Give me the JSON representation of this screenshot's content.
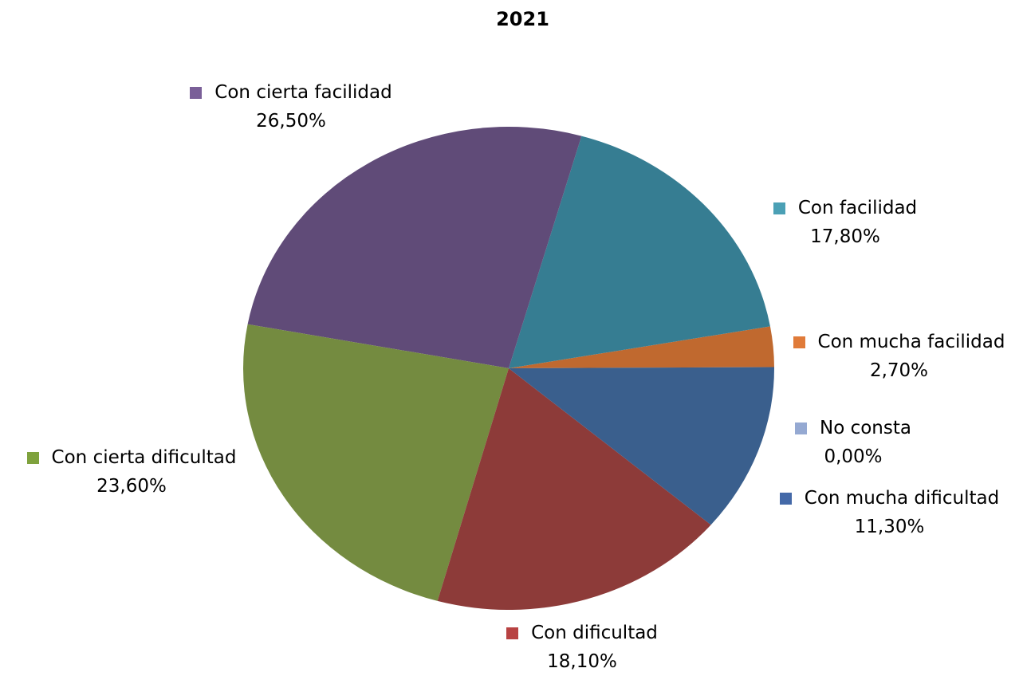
{
  "chart_data": {
    "type": "pie",
    "title": "2021",
    "slices": [
      {
        "name": "Con mucha facilidad",
        "value": 2.7,
        "label": "2,70%",
        "color": "#C0692F"
      },
      {
        "name": "Con facilidad",
        "value": 17.8,
        "label": "17,80%",
        "color": "#367D92"
      },
      {
        "name": "Con cierta facilidad",
        "value": 26.5,
        "label": "26,50%",
        "color": "#604B78"
      },
      {
        "name": "Con cierta dificultad",
        "value": 23.6,
        "label": "23,60%",
        "color": "#748B40"
      },
      {
        "name": "Con dificultad",
        "value": 18.1,
        "label": "18,10%",
        "color": "#8D3B39"
      },
      {
        "name": "Con mucha dificultad",
        "value": 11.3,
        "label": "11,30%",
        "color": "#3A5F8D"
      },
      {
        "name": "No consta",
        "value": 0.0,
        "label": "0,00%",
        "color": "#95A9D2"
      }
    ],
    "legend_colors": {
      "Con mucha facilidad": "#E07B39",
      "Con facilidad": "#4BA0B5",
      "Con cierta facilidad": "#7A5F98",
      "Con cierta dificultad": "#7FA23D",
      "Con dificultad": "#B84242",
      "Con mucha dificultad": "#4469A8",
      "No consta": "#95A9D2"
    }
  }
}
